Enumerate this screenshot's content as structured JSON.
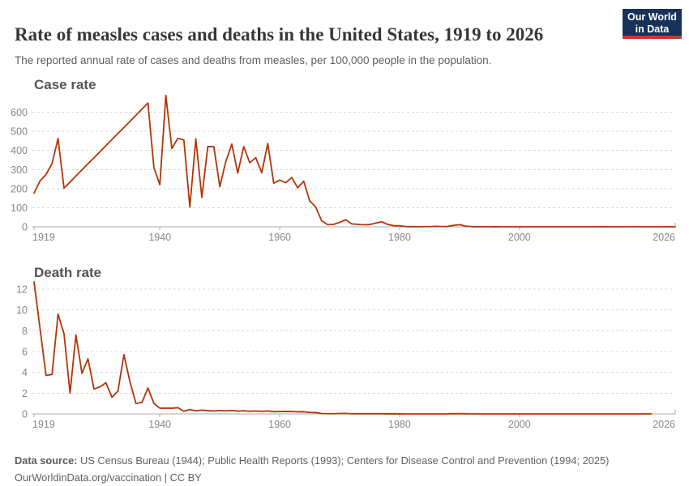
{
  "header": {
    "title": "Rate of measles cases and deaths in the United States, 1919 to 2026",
    "subtitle": "The reported annual rate of cases and deaths from measles, per 100,000 people in the population.",
    "logo": {
      "line1": "Our World",
      "line2": "in Data"
    }
  },
  "footer": {
    "source_label": "Data source:",
    "sources": "US Census Bureau (1944); Public Health Reports (1993); Centers for Disease Control and Prevention (1994; 2025)",
    "link": "OurWorldinData.org/vaccination",
    "license": "| CC BY"
  },
  "colors": {
    "line": "#b13507",
    "grid": "#d8d8d8",
    "axis": "#a8a8a8",
    "tick_text": "#878787",
    "logo_bg": "#16325a",
    "logo_stripe": "#c03b31"
  },
  "chart_data": [
    {
      "type": "line",
      "title": "Case rate",
      "series_name": "Measles case rate per 100,000",
      "color": "#b13507",
      "xlabel": "",
      "ylabel": "",
      "xlim": [
        1919,
        2026
      ],
      "ylim": [
        0,
        600
      ],
      "grid": "dashed-horizontal",
      "legend": "none",
      "yticks": [
        0,
        100,
        200,
        300,
        400,
        500,
        600
      ],
      "xticks": [
        1919,
        1940,
        1960,
        1980,
        2000,
        2026
      ],
      "x": [
        1919,
        1920,
        1921,
        1922,
        1923,
        1924,
        1925,
        1926,
        1927,
        1928,
        1929,
        1930,
        1931,
        1932,
        1933,
        1934,
        1935,
        1936,
        1937,
        1938,
        1939,
        1940,
        1941,
        1942,
        1943,
        1944,
        1945,
        1946,
        1947,
        1948,
        1949,
        1950,
        1951,
        1952,
        1953,
        1954,
        1955,
        1956,
        1957,
        1958,
        1959,
        1960,
        1961,
        1962,
        1963,
        1964,
        1965,
        1966,
        1967,
        1968,
        1969,
        1970,
        1971,
        1972,
        1973,
        1974,
        1975,
        1976,
        1977,
        1978,
        1979,
        1980,
        1981,
        1982,
        1983,
        1984,
        1985,
        1986,
        1987,
        1988,
        1989,
        1990,
        1991,
        1992,
        1993,
        1994,
        1995,
        1996,
        1997,
        1998,
        1999,
        2000,
        2001,
        2002,
        2003,
        2004,
        2005,
        2006,
        2007,
        2008,
        2009,
        2010,
        2011,
        2012,
        2013,
        2014,
        2015,
        2016,
        2017,
        2018,
        2019,
        2020,
        2021,
        2022,
        2023,
        2024,
        2025,
        2026
      ],
      "y": [
        176,
        240,
        274,
        331,
        462,
        202,
        234,
        266,
        298,
        330,
        361,
        393,
        425,
        457,
        489,
        520,
        552,
        584,
        616,
        648,
        309,
        220,
        688,
        410,
        463,
        455,
        104,
        460,
        154,
        420,
        419,
        210,
        342,
        433,
        281,
        420,
        335,
        362,
        283,
        436,
        228,
        244,
        231,
        258,
        204,
        239,
        135,
        104,
        31.6,
        11.1,
        12.8,
        23.2,
        36.5,
        15.5,
        12.7,
        10.5,
        11.4,
        19.2,
        26.5,
        12.3,
        6.2,
        6,
        1.4,
        0.7,
        0.6,
        1.1,
        1.2,
        2.6,
        1.5,
        1.4,
        7.3,
        11.2,
        3.8,
        0.9,
        0.12,
        0.37,
        0.12,
        0.19,
        0.05,
        0.04,
        0.04,
        0.03,
        0.04,
        0.02,
        0.02,
        0.01,
        0.02,
        0.02,
        0.01,
        0.05,
        0.02,
        0.02,
        0.07,
        0.02,
        0.06,
        0.21,
        0.06,
        0.03,
        0.04,
        0.11,
        0.38,
        0.04,
        0.01,
        0.04,
        0.02,
        0.08,
        0.33,
        0.02
      ]
    },
    {
      "type": "line",
      "title": "Death rate",
      "series_name": "Measles death rate per 100,000",
      "color": "#b13507",
      "xlabel": "",
      "ylabel": "",
      "xlim": [
        1919,
        2026
      ],
      "ylim": [
        0,
        12
      ],
      "grid": "dashed-horizontal",
      "legend": "none",
      "yticks": [
        0,
        2,
        4,
        6,
        8,
        10,
        12
      ],
      "xticks": [
        1919,
        1940,
        1960,
        1980,
        2000,
        2026
      ],
      "x": [
        1919,
        1920,
        1921,
        1922,
        1923,
        1924,
        1925,
        1926,
        1927,
        1928,
        1929,
        1930,
        1931,
        1932,
        1933,
        1934,
        1935,
        1936,
        1937,
        1938,
        1939,
        1940,
        1941,
        1942,
        1943,
        1944,
        1945,
        1946,
        1947,
        1948,
        1949,
        1950,
        1951,
        1952,
        1953,
        1954,
        1955,
        1956,
        1957,
        1958,
        1959,
        1960,
        1961,
        1962,
        1963,
        1964,
        1965,
        1966,
        1967,
        1968,
        1969,
        1970,
        1971,
        1972,
        1973,
        1974,
        1975,
        1976,
        1977,
        1978,
        1979,
        1980,
        1981,
        1982,
        1983,
        1984,
        1985,
        1986,
        1987,
        1988,
        1989,
        1990,
        1991,
        1992,
        1993,
        1994,
        1995,
        1996,
        1997,
        1998,
        1999,
        2000,
        2001,
        2002,
        2003,
        2004,
        2005,
        2006,
        2007,
        2008,
        2009,
        2010,
        2011,
        2012,
        2013,
        2014,
        2015,
        2016,
        2017,
        2018,
        2019,
        2020,
        2021,
        2022
      ],
      "y": [
        12.7,
        8.2,
        3.7,
        3.8,
        9.6,
        7.7,
        2,
        7.6,
        3.9,
        5.3,
        2.4,
        2.6,
        3,
        1.6,
        2.2,
        5.7,
        3.1,
        1,
        1.1,
        2.5,
        1,
        0.55,
        0.55,
        0.55,
        0.6,
        0.25,
        0.42,
        0.3,
        0.36,
        0.32,
        0.28,
        0.33,
        0.29,
        0.33,
        0.27,
        0.3,
        0.25,
        0.28,
        0.25,
        0.28,
        0.22,
        0.23,
        0.24,
        0.23,
        0.2,
        0.21,
        0.14,
        0.13,
        0.04,
        0.02,
        0.02,
        0.04,
        0.05,
        0.01,
        0.01,
        0.01,
        0.01,
        0.01,
        0.01,
        0.005,
        0.003,
        0.005,
        0.001,
        0.001,
        0.002,
        0.001,
        0.002,
        0.001,
        0.001,
        0.002,
        0.013,
        0.026,
        0.011,
        0.001,
        0,
        0,
        0.001,
        0.0005,
        0.001,
        0.0004,
        0.0007,
        0.0004,
        0.0004,
        0.0002,
        0.0001,
        0.0001,
        0.0002,
        0.0001,
        0,
        0,
        0.0001,
        0.0001,
        0.0001,
        0.0001,
        0,
        0,
        0.0004,
        0,
        0,
        0,
        0,
        0,
        0,
        0.001
      ]
    }
  ]
}
